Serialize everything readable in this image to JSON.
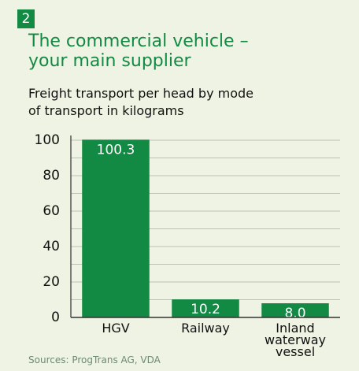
{
  "chart_data": {
    "type": "bar",
    "badge": "2",
    "title": "The commercial vehicle – your main supplier",
    "subtitle": "Freight transport per head by mode of transport in kilograms",
    "categories": [
      "HGV",
      "Railway",
      "Inland waterway vessel"
    ],
    "values": [
      100.3,
      10.2,
      8.0
    ],
    "value_labels": [
      "100.3",
      "10.2",
      "8.0"
    ],
    "color": "#138a43",
    "ylim": [
      0,
      100
    ],
    "yticks": [
      0,
      20,
      40,
      60,
      80,
      100
    ],
    "minor_yticks": [
      10,
      30,
      50,
      70,
      90
    ],
    "grid": true,
    "source": "Sources: ProgTrans AG, VDA"
  }
}
